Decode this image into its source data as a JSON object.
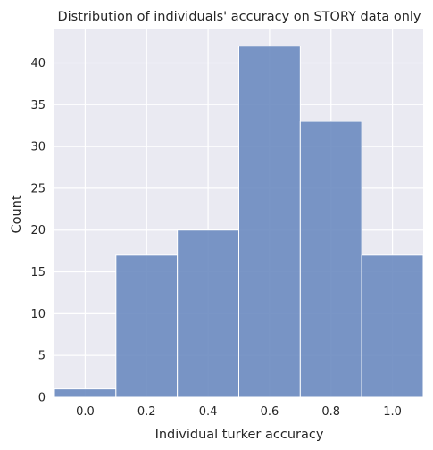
{
  "chart_data": {
    "type": "bar",
    "style": "histogram",
    "title": "Distribution of individuals' accuracy on STORY data only",
    "xlabel": "Individual turker accuracy",
    "ylabel": "Count",
    "bins": [
      {
        "x0": -0.1,
        "x1": 0.1,
        "count": 1
      },
      {
        "x0": 0.1,
        "x1": 0.3,
        "count": 17
      },
      {
        "x0": 0.3,
        "x1": 0.5,
        "count": 20
      },
      {
        "x0": 0.5,
        "x1": 0.7,
        "count": 42
      },
      {
        "x0": 0.7,
        "x1": 0.9,
        "count": 33
      },
      {
        "x0": 0.9,
        "x1": 1.1,
        "count": 17
      }
    ],
    "xlim": [
      -0.1,
      1.1
    ],
    "ylim": [
      0,
      44
    ],
    "xticks": [
      0.0,
      0.2,
      0.4,
      0.6,
      0.8,
      1.0
    ],
    "xtick_labels": [
      "0.0",
      "0.2",
      "0.4",
      "0.6",
      "0.8",
      "1.0"
    ],
    "yticks": [
      0,
      5,
      10,
      15,
      20,
      25,
      30,
      35,
      40
    ],
    "ytick_labels": [
      "0",
      "5",
      "10",
      "15",
      "20",
      "25",
      "30",
      "35",
      "40"
    ],
    "grid": true,
    "colors": {
      "background": "#eaeaf2",
      "grid": "#ffffff",
      "bar_fill": "#6b8bc0",
      "bar_edge": "#ffffff",
      "text": "#262626"
    }
  }
}
